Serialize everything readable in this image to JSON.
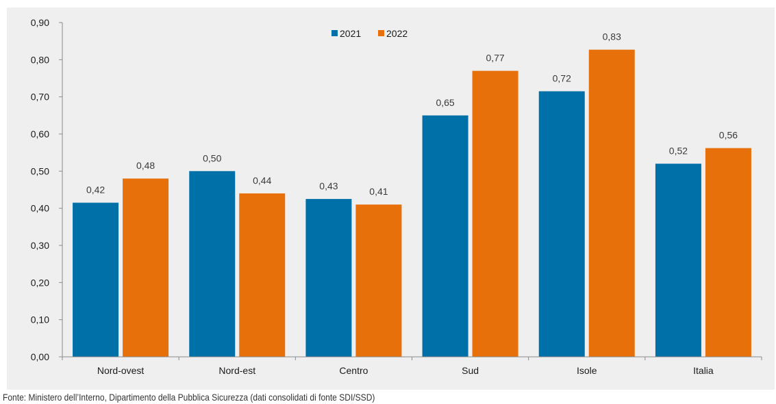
{
  "chart_data": {
    "type": "bar",
    "categories": [
      "Nord-ovest",
      "Nord-est",
      "Centro",
      "Sud",
      "Isole",
      "Italia"
    ],
    "series": [
      {
        "name": "2021",
        "color": "#0070a8",
        "values": [
          0.415,
          0.5,
          0.425,
          0.65,
          0.715,
          0.52
        ],
        "labels": [
          "0,42",
          "0,50",
          "0,43",
          "0,65",
          "0,72",
          "0,52"
        ]
      },
      {
        "name": "2022",
        "color": "#e8700a",
        "values": [
          0.48,
          0.44,
          0.41,
          0.77,
          0.827,
          0.562
        ],
        "labels": [
          "0,48",
          "0,44",
          "0,41",
          "0,77",
          "0,83",
          "0,56"
        ]
      }
    ],
    "ylim": [
      0,
      0.9
    ],
    "yticks": [
      0,
      0.1,
      0.2,
      0.3,
      0.4,
      0.5,
      0.6,
      0.7,
      0.8,
      0.9
    ],
    "ytick_labels": [
      "0,00",
      "0,10",
      "0,20",
      "0,30",
      "0,40",
      "0,50",
      "0,60",
      "0,70",
      "0,80",
      "0,90"
    ],
    "legend_position": "top-center",
    "grid": false
  },
  "source_note": "Fonte: Ministero dell’Interno, Dipartimento della Pubblica Sicurezza (dati consolidati di fonte SDI/SSD)"
}
